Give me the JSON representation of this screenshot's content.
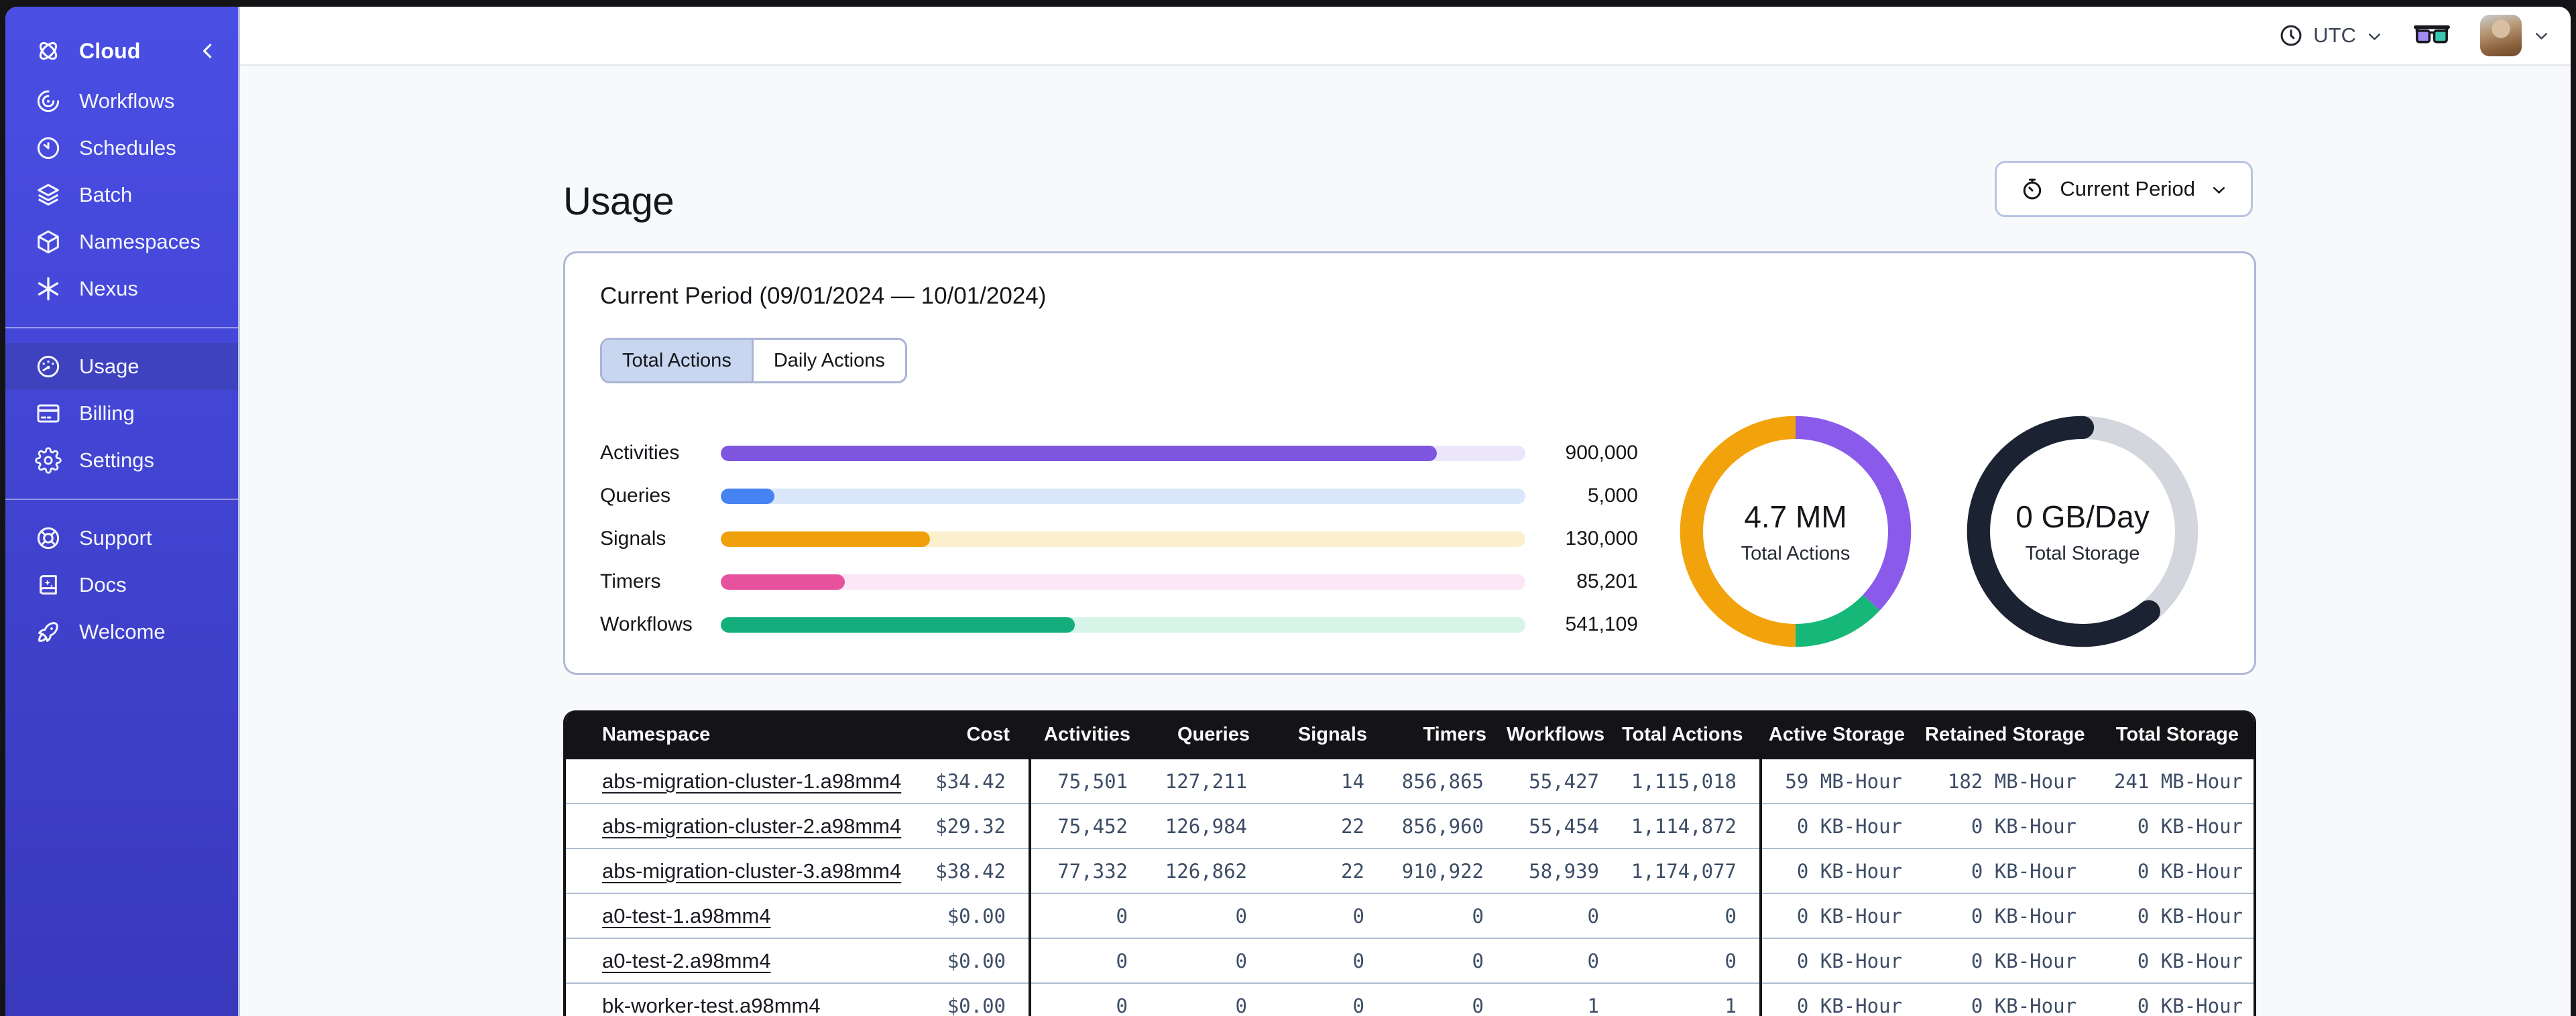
{
  "colors": {
    "desktop_bg": "#141416",
    "page_bg": "#F8F9FB",
    "sidebar_top": "#4A4EE4",
    "sidebar_bottom": "#3839BC",
    "sidebar_active": "#3E42BE",
    "topbar_border": "#E3E6EB",
    "panel_border": "#B9C4E4",
    "card_border": "#AFB8D5",
    "tab_active_bg": "#C9D6F0",
    "table_header_bg": "#141417",
    "row_divider": "#AFBDD3",
    "link_color": "#1A1B22",
    "number_color": "#3D4D66"
  },
  "sidebar": {
    "brand": {
      "label": "Cloud",
      "icon": "temporal-logo"
    },
    "groups": [
      [
        {
          "id": "workflows",
          "label": "Workflows",
          "icon": "workflows"
        },
        {
          "id": "schedules",
          "label": "Schedules",
          "icon": "schedules"
        },
        {
          "id": "batch",
          "label": "Batch",
          "icon": "batch"
        },
        {
          "id": "namespaces",
          "label": "Namespaces",
          "icon": "namespaces"
        },
        {
          "id": "nexus",
          "label": "Nexus",
          "icon": "nexus"
        }
      ],
      [
        {
          "id": "usage",
          "label": "Usage",
          "icon": "usage",
          "active": true
        },
        {
          "id": "billing",
          "label": "Billing",
          "icon": "billing"
        },
        {
          "id": "settings",
          "label": "Settings",
          "icon": "settings"
        }
      ],
      [
        {
          "id": "support",
          "label": "Support",
          "icon": "support"
        },
        {
          "id": "docs",
          "label": "Docs",
          "icon": "docs"
        },
        {
          "id": "welcome",
          "label": "Welcome",
          "icon": "welcome"
        }
      ]
    ]
  },
  "topbar": {
    "timezone": "UTC"
  },
  "page": {
    "title": "Usage"
  },
  "period_button": {
    "label": "Current Period"
  },
  "card": {
    "title": "Current Period (09/01/2024 — 10/01/2024)",
    "tabs": [
      {
        "id": "total-actions",
        "label": "Total Actions",
        "active": true
      },
      {
        "id": "daily-actions",
        "label": "Daily Actions"
      }
    ]
  },
  "chart_data": [
    {
      "type": "bar",
      "title": "Actions by type (current period)",
      "categories": [
        "Activities",
        "Queries",
        "Signals",
        "Timers",
        "Workflows"
      ],
      "values": [
        900000,
        5000,
        130000,
        85201,
        541109
      ],
      "value_labels": [
        "900,000",
        "5,000",
        "130,000",
        "85,201",
        "541,109"
      ],
      "fill_pct": [
        89,
        6.7,
        26,
        15.4,
        44
      ],
      "bar_colors": [
        "#7E56E0",
        "#4583F2",
        "#F0A00C",
        "#E7529F",
        "#14AE7C"
      ],
      "track_colors": [
        "#ECE6FA",
        "#DAE7FB",
        "#FBF0CD",
        "#FBE7F5",
        "#D6F5E8"
      ]
    },
    {
      "type": "pie",
      "title": "Total Actions",
      "center_value": "4.7 MM",
      "center_label": "Total Actions",
      "slices": [
        {
          "name": "segment-1",
          "pct": 37,
          "color": "#8A5BEA"
        },
        {
          "name": "segment-2",
          "pct": 13,
          "color": "#16B878"
        },
        {
          "name": "segment-3",
          "pct": 50,
          "color": "#F2A30C"
        }
      ]
    },
    {
      "type": "pie",
      "title": "Total Storage",
      "center_value": "0 GB/Day",
      "center_label": "Total Storage",
      "slices": [
        {
          "name": "track",
          "pct": 39,
          "color": "#D3D6DC",
          "base": true
        },
        {
          "name": "segment-1",
          "pct": 61,
          "color": "#1B2332",
          "start_pct": 39,
          "round_caps": true
        }
      ]
    }
  ],
  "table": {
    "headers": [
      "Namespace",
      "Cost",
      "Activities",
      "Queries",
      "Signals",
      "Timers",
      "Workflows",
      "Total Actions",
      "Active Storage",
      "Retained Storage",
      "Total Storage"
    ],
    "rows": [
      [
        "abs-migration-cluster-1.a98mm4",
        "$34.42",
        "75,501",
        "127,211",
        "14",
        "856,865",
        "55,427",
        "1,115,018",
        "59 MB-Hour",
        "182 MB-Hour",
        "241 MB-Hour"
      ],
      [
        "abs-migration-cluster-2.a98mm4",
        "$29.32",
        "75,452",
        "126,984",
        "22",
        "856,960",
        "55,454",
        "1,114,872",
        "0 KB-Hour",
        "0 KB-Hour",
        "0 KB-Hour"
      ],
      [
        "abs-migration-cluster-3.a98mm4",
        "$38.42",
        "77,332",
        "126,862",
        "22",
        "910,922",
        "58,939",
        "1,174,077",
        "0 KB-Hour",
        "0 KB-Hour",
        "0 KB-Hour"
      ],
      [
        "a0-test-1.a98mm4",
        "$0.00",
        "0",
        "0",
        "0",
        "0",
        "0",
        "0",
        "0 KB-Hour",
        "0 KB-Hour",
        "0 KB-Hour"
      ],
      [
        "a0-test-2.a98mm4",
        "$0.00",
        "0",
        "0",
        "0",
        "0",
        "0",
        "0",
        "0 KB-Hour",
        "0 KB-Hour",
        "0 KB-Hour"
      ],
      [
        "bk-worker-test.a98mm4",
        "$0.00",
        "0",
        "0",
        "0",
        "0",
        "1",
        "1",
        "0 KB-Hour",
        "0 KB-Hour",
        "0 KB-Hour"
      ]
    ]
  }
}
